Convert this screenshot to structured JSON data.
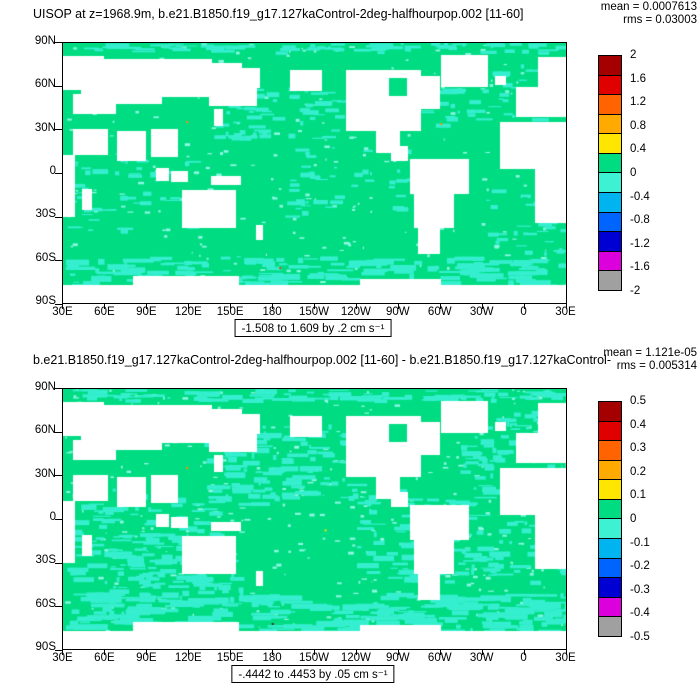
{
  "axes": {
    "lon_labels": [
      "30E",
      "60E",
      "90E",
      "120E",
      "150E",
      "180",
      "150W",
      "120W",
      "90W",
      "60W",
      "30W",
      "0",
      "30E"
    ],
    "lat_labels": [
      "90N",
      "60N",
      "30N",
      "0",
      "30S",
      "60S",
      "90S"
    ]
  },
  "panels": [
    {
      "title": "UISOP at z=1968.9m, b.e21.B1850.f19_g17.127kaControl-2deg-halfhourpop.002 [11-60]",
      "mean_label": "mean = 0.0007613",
      "rms_label": "rms = 0.03003",
      "caption": "-1.508 to 1.609 by .2 cm s⁻¹",
      "colorbar": {
        "labels": [
          "2",
          "1.6",
          "1.2",
          "0.8",
          "0.4",
          "0",
          "-0.4",
          "-0.8",
          "-1.2",
          "-1.6",
          "-2"
        ],
        "colors": [
          "#a50000",
          "#e10000",
          "#ff6400",
          "#ffaa00",
          "#ffe600",
          "#00dc82",
          "#3cf2d2",
          "#00b4f0",
          "#0064ff",
          "#0000d2",
          "#dc00dc",
          "#a0a0a0"
        ]
      }
    },
    {
      "title": "b.e21.B1850.f19_g17.127kaControl-2deg-halfhourpop.002 [11-60] - b.e21.B1850.f19_g17.127kaControl-",
      "mean_label": "mean = 1.121e-05",
      "rms_label": "rms = 0.005314",
      "caption": "-.4442 to .4453 by .05 cm s⁻¹",
      "colorbar": {
        "labels": [
          "0.5",
          "0.4",
          "0.3",
          "0.2",
          "0.1",
          "0",
          "-0.1",
          "-0.2",
          "-0.3",
          "-0.4",
          "-0.5"
        ],
        "colors": [
          "#a50000",
          "#e10000",
          "#ff6400",
          "#ffaa00",
          "#ffe600",
          "#00dc82",
          "#3cf2d2",
          "#00b4f0",
          "#0064ff",
          "#0000d2",
          "#dc00dc",
          "#a0a0a0"
        ]
      }
    }
  ],
  "chart_data": [
    {
      "type": "heatmap",
      "title": "UISOP at z=1968.9m, b.e21.B1850.f19_g17.127kaControl-2deg-halfhourpop.002 [11-60]",
      "variable": "UISOP",
      "units": "cm s⁻¹",
      "stats": {
        "mean": 0.0007613,
        "rms": 0.03003,
        "min": -1.508,
        "max": 1.609
      },
      "contour_interval": 0.2,
      "colorbar_levels": [
        2,
        1.6,
        1.2,
        0.8,
        0.4,
        0,
        -0.4,
        -0.8,
        -1.2,
        -1.6,
        -2
      ],
      "x_tick_labels": [
        "30E",
        "60E",
        "90E",
        "120E",
        "150E",
        "180",
        "150W",
        "120W",
        "90W",
        "60W",
        "30W",
        "0",
        "30E"
      ],
      "y_tick_labels": [
        "90N",
        "60N",
        "30N",
        "0",
        "30S",
        "60S",
        "90S"
      ],
      "legend_position": "right",
      "field_summary": "Global ocean map: field is ~0 (green) nearly everywhere with scattered slightly negative (cyan) patches; continents masked white."
    },
    {
      "type": "heatmap",
      "title": "b.e21.B1850.f19_g17.127kaControl-2deg-halfhourpop.002 [11-60] - b.e21.B1850.f19_g17.127kaControl-",
      "variable": "UISOP difference",
      "units": "cm s⁻¹",
      "stats": {
        "mean": 1.121e-05,
        "rms": 0.005314,
        "min": -0.4442,
        "max": 0.4453
      },
      "contour_interval": 0.05,
      "colorbar_levels": [
        0.5,
        0.4,
        0.3,
        0.2,
        0.1,
        0,
        -0.1,
        -0.2,
        -0.3,
        -0.4,
        -0.5
      ],
      "x_tick_labels": [
        "30E",
        "60E",
        "90E",
        "120E",
        "150E",
        "180",
        "150W",
        "120W",
        "90W",
        "60W",
        "30W",
        "0",
        "30E"
      ],
      "y_tick_labels": [
        "90N",
        "60N",
        "30N",
        "0",
        "30S",
        "60S",
        "90S"
      ],
      "legend_position": "right",
      "field_summary": "Difference map: ~0 (green) with more extensive slightly negative (cyan) mottling; continents masked white."
    }
  ],
  "map_render": {
    "ocean_color": "#00dc82",
    "patch_color": "#35efcf",
    "patch_color_light": "#8cf7e4",
    "land_color": "#ffffff",
    "land_rects": [
      [
        0.0,
        0.05,
        0.08,
        0.13
      ],
      [
        0.035,
        0.06,
        0.26,
        0.145
      ],
      [
        0.14,
        0.075,
        0.215,
        0.115
      ],
      [
        0.055,
        0.145,
        0.14,
        0.085
      ],
      [
        0.29,
        0.145,
        0.095,
        0.095
      ],
      [
        0.33,
        0.095,
        0.06,
        0.075
      ],
      [
        0.02,
        0.195,
        0.085,
        0.075
      ],
      [
        0.02,
        0.33,
        0.068,
        0.1
      ],
      [
        0.108,
        0.34,
        0.057,
        0.112
      ],
      [
        0.175,
        0.33,
        0.052,
        0.105
      ],
      [
        0.3,
        0.252,
        0.016,
        0.062
      ],
      [
        0.185,
        0.48,
        0.024,
        0.048
      ],
      [
        0.215,
        0.492,
        0.032,
        0.042
      ],
      [
        0.295,
        0.513,
        0.058,
        0.032
      ],
      [
        0.236,
        0.565,
        0.106,
        0.145
      ],
      [
        0.384,
        0.7,
        0.013,
        0.055
      ],
      [
        0.038,
        0.562,
        0.019,
        0.078
      ],
      [
        0.0,
        0.43,
        0.023,
        0.235
      ],
      [
        0.868,
        0.302,
        0.132,
        0.178
      ],
      [
        0.938,
        0.468,
        0.062,
        0.22
      ],
      [
        0.9,
        0.168,
        0.1,
        0.112
      ],
      [
        0.944,
        0.052,
        0.056,
        0.112
      ],
      [
        0.858,
        0.128,
        0.02,
        0.032
      ],
      [
        0.752,
        0.045,
        0.093,
        0.122
      ],
      [
        0.563,
        0.103,
        0.148,
        0.232
      ],
      [
        0.452,
        0.103,
        0.063,
        0.078
      ],
      [
        0.698,
        0.128,
        0.05,
        0.124
      ],
      [
        0.623,
        0.33,
        0.047,
        0.092
      ],
      [
        0.652,
        0.398,
        0.032,
        0.055
      ],
      [
        0.69,
        0.448,
        0.116,
        0.132
      ],
      [
        0.698,
        0.575,
        0.078,
        0.132
      ],
      [
        0.705,
        0.7,
        0.042,
        0.108
      ],
      [
        0.0,
        0.93,
        1.0,
        0.07
      ],
      [
        0.14,
        0.898,
        0.21,
        0.04
      ],
      [
        0.59,
        0.908,
        0.16,
        0.03
      ]
    ],
    "water_rects": [
      [
        0.648,
        0.135,
        0.034,
        0.068
      ]
    ],
    "panels": [
      {
        "speckle_count": 260,
        "patch_zones": [
          [
            0.0,
            0.0,
            1.0,
            0.035,
            70,
            22,
            3
          ],
          [
            0.0,
            0.82,
            1.0,
            0.11,
            160,
            30,
            5
          ],
          [
            0.7,
            0.08,
            0.3,
            0.24,
            55,
            16,
            4
          ],
          [
            0.3,
            0.17,
            0.25,
            0.2,
            55,
            16,
            4
          ],
          [
            0.44,
            0.4,
            0.26,
            0.28,
            45,
            14,
            4
          ],
          [
            0.0,
            0.42,
            0.26,
            0.3,
            55,
            16,
            4
          ],
          [
            0.84,
            0.52,
            0.16,
            0.3,
            40,
            14,
            4
          ]
        ],
        "specks": [
          [
            0.245,
            0.3,
            "#ff8c00"
          ],
          [
            0.75,
            0.308,
            "#ff8c00"
          ],
          [
            0.43,
            0.862,
            "#cc4400"
          ]
        ]
      },
      {
        "speckle_count": 420,
        "patch_zones": [
          [
            0.0,
            0.0,
            1.0,
            0.04,
            90,
            24,
            4
          ],
          [
            0.0,
            0.78,
            1.0,
            0.15,
            240,
            34,
            6
          ],
          [
            0.28,
            0.12,
            0.34,
            0.32,
            130,
            22,
            5
          ],
          [
            0.58,
            0.38,
            0.42,
            0.36,
            130,
            22,
            5
          ],
          [
            0.0,
            0.38,
            0.3,
            0.38,
            110,
            20,
            5
          ],
          [
            0.78,
            0.08,
            0.22,
            0.3,
            85,
            18,
            5
          ],
          [
            0.05,
            0.56,
            0.3,
            0.25,
            80,
            18,
            5
          ]
        ],
        "specks": [
          [
            0.245,
            0.3,
            "#ff8c00"
          ],
          [
            0.52,
            0.54,
            "#ffe600"
          ],
          [
            0.415,
            0.9,
            "#333333"
          ]
        ]
      }
    ]
  }
}
